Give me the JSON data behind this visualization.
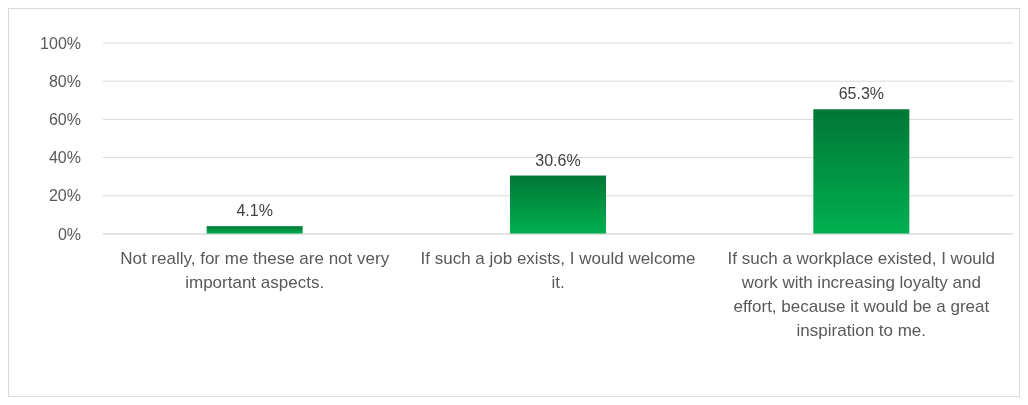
{
  "chart_data": {
    "type": "bar",
    "categories": [
      "Not really, for me these are not very important aspects.",
      "If such a job exists, I would welcome it.",
      "If such a workplace existed, I would work with increasing loyalty and effort, because it would be a great inspiration to me."
    ],
    "values": [
      4.1,
      30.6,
      65.3
    ],
    "color": "#00b050",
    "ylim": [
      0,
      100
    ],
    "yticks": [
      {
        "value": 0,
        "label": "0%"
      },
      {
        "value": 20,
        "label": "20%"
      },
      {
        "value": 40,
        "label": "40%"
      },
      {
        "value": 60,
        "label": "60%"
      },
      {
        "value": 80,
        "label": "80%"
      },
      {
        "value": 100,
        "label": "100%"
      }
    ],
    "value_labels": [
      "4.1%",
      "30.6%",
      "65.3%"
    ],
    "grid": "y"
  }
}
